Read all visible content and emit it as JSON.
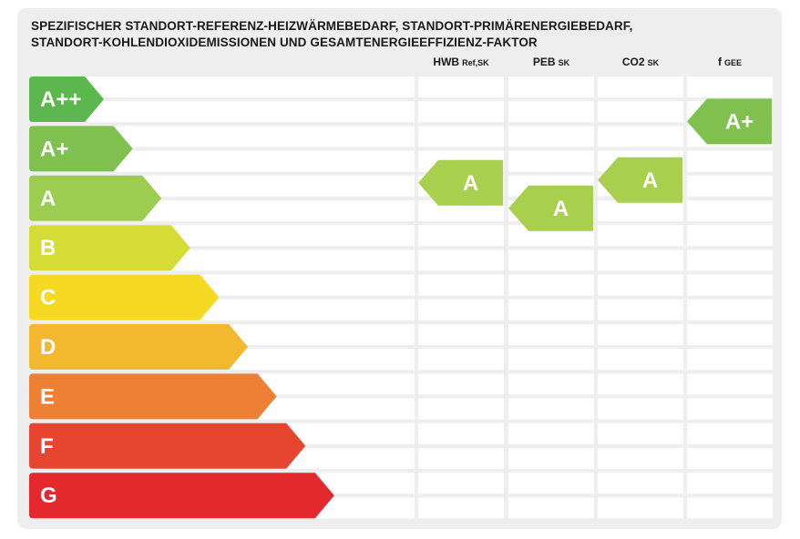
{
  "title_lines": [
    "SPEZIFISCHER STANDORT-REFERENZ-HEIZWÄRMEBEDARF, STANDORT-PRIMÄRENERGIEBEDARF,",
    "STANDORT-KOHLENDIOXIDEMISSIONEN UND GESAMTENERGIEEFFIZIENZ-FAKTOR"
  ],
  "chart_data": {
    "type": "table",
    "classes": [
      {
        "label": "A++",
        "color": "#5cb84e"
      },
      {
        "label": "A+",
        "color": "#7fc04f"
      },
      {
        "label": "A",
        "color": "#9ccd51"
      },
      {
        "label": "B",
        "color": "#d4dc35"
      },
      {
        "label": "C",
        "color": "#f5d923"
      },
      {
        "label": "D",
        "color": "#f4b730"
      },
      {
        "label": "E",
        "color": "#ee8036"
      },
      {
        "label": "F",
        "color": "#e6462f"
      },
      {
        "label": "G",
        "color": "#e3282e"
      }
    ],
    "columns": [
      {
        "name": "HWB",
        "sub": "Ref,SK",
        "rating": "A",
        "color": "#a9cf4f"
      },
      {
        "name": "PEB",
        "sub": "SK",
        "rating": "A",
        "color": "#a9cf4f"
      },
      {
        "name": "CO2",
        "sub": "SK",
        "rating": "A",
        "color": "#a9cf4f"
      },
      {
        "name": "f",
        "sub": "GEE",
        "rating": "A+",
        "color": "#7fc04f"
      }
    ]
  }
}
